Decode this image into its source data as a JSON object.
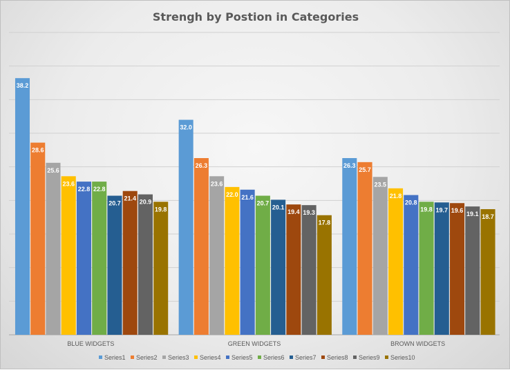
{
  "chart_data": {
    "type": "bar",
    "title": "Strengh by Postion in Categories",
    "xlabel": "",
    "ylabel": "",
    "ylim": [
      0,
      45
    ],
    "grid": true,
    "legend_position": "bottom",
    "categories": [
      "BLUE WIDGETS",
      "GREEN WIDGETS",
      "BROWN WIDGETS"
    ],
    "series": [
      {
        "name": "Series1",
        "color": "#5b9bd5",
        "values": [
          38.2,
          32.0,
          26.3
        ]
      },
      {
        "name": "Series2",
        "color": "#ed7d31",
        "values": [
          28.6,
          26.3,
          25.7
        ]
      },
      {
        "name": "Series3",
        "color": "#a5a5a5",
        "values": [
          25.6,
          23.6,
          23.5
        ]
      },
      {
        "name": "Series4",
        "color": "#ffc000",
        "values": [
          23.6,
          22.0,
          21.8
        ]
      },
      {
        "name": "Series5",
        "color": "#4472c4",
        "values": [
          22.8,
          21.6,
          20.8
        ]
      },
      {
        "name": "Series6",
        "color": "#70ad47",
        "values": [
          22.8,
          20.7,
          19.8
        ]
      },
      {
        "name": "Series7",
        "color": "#255e91",
        "values": [
          20.7,
          20.1,
          19.7
        ]
      },
      {
        "name": "Series8",
        "color": "#9e480e",
        "values": [
          21.4,
          19.4,
          19.6
        ]
      },
      {
        "name": "Series9",
        "color": "#636363",
        "values": [
          20.9,
          19.3,
          19.1
        ]
      },
      {
        "name": "Series10",
        "color": "#997300",
        "values": [
          19.8,
          17.8,
          18.7
        ]
      }
    ]
  }
}
